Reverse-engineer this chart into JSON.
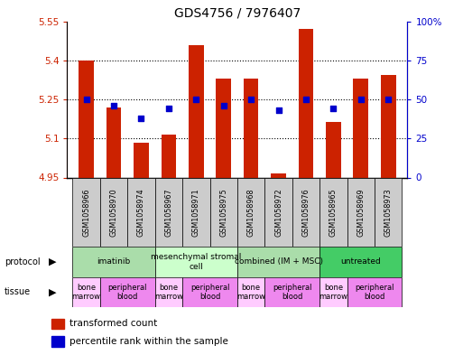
{
  "title": "GDS4756 / 7976407",
  "samples": [
    "GSM1058966",
    "GSM1058970",
    "GSM1058974",
    "GSM1058967",
    "GSM1058971",
    "GSM1058975",
    "GSM1058968",
    "GSM1058972",
    "GSM1058976",
    "GSM1058965",
    "GSM1058969",
    "GSM1058973"
  ],
  "bar_values": [
    5.4,
    5.22,
    5.085,
    5.115,
    5.46,
    5.33,
    5.33,
    4.965,
    5.52,
    5.165,
    5.33,
    5.345
  ],
  "blue_values": [
    50,
    46,
    38,
    44,
    50,
    46,
    50,
    43,
    50,
    44,
    50,
    50
  ],
  "ymin": 4.95,
  "ymax": 5.55,
  "yticks": [
    4.95,
    5.1,
    5.25,
    5.4,
    5.55
  ],
  "right_yticks": [
    0,
    25,
    50,
    75,
    100
  ],
  "bar_color": "#cc2200",
  "blue_color": "#0000cc",
  "grid_lines": [
    5.1,
    5.25,
    5.4
  ],
  "protocols": [
    {
      "label": "imatinib",
      "start": 0,
      "end": 3,
      "color": "#aaddaa"
    },
    {
      "label": "mesenchymal stromal\ncell",
      "start": 3,
      "end": 6,
      "color": "#ccffcc"
    },
    {
      "label": "combined (IM + MSC)",
      "start": 6,
      "end": 9,
      "color": "#aaddaa"
    },
    {
      "label": "untreated",
      "start": 9,
      "end": 12,
      "color": "#44cc66"
    }
  ],
  "tissues": [
    {
      "label": "bone\nmarrow",
      "start": 0,
      "end": 1,
      "color": "#ffccff"
    },
    {
      "label": "peripheral\nblood",
      "start": 1,
      "end": 3,
      "color": "#ee88ee"
    },
    {
      "label": "bone\nmarrow",
      "start": 3,
      "end": 4,
      "color": "#ffccff"
    },
    {
      "label": "peripheral\nblood",
      "start": 4,
      "end": 6,
      "color": "#ee88ee"
    },
    {
      "label": "bone\nmarrow",
      "start": 6,
      "end": 7,
      "color": "#ffccff"
    },
    {
      "label": "peripheral\nblood",
      "start": 7,
      "end": 9,
      "color": "#ee88ee"
    },
    {
      "label": "bone\nmarrow",
      "start": 9,
      "end": 10,
      "color": "#ffccff"
    },
    {
      "label": "peripheral\nblood",
      "start": 10,
      "end": 12,
      "color": "#ee88ee"
    }
  ],
  "figsize": [
    5.13,
    3.93
  ],
  "dpi": 100,
  "label_bg_color": "#cccccc"
}
